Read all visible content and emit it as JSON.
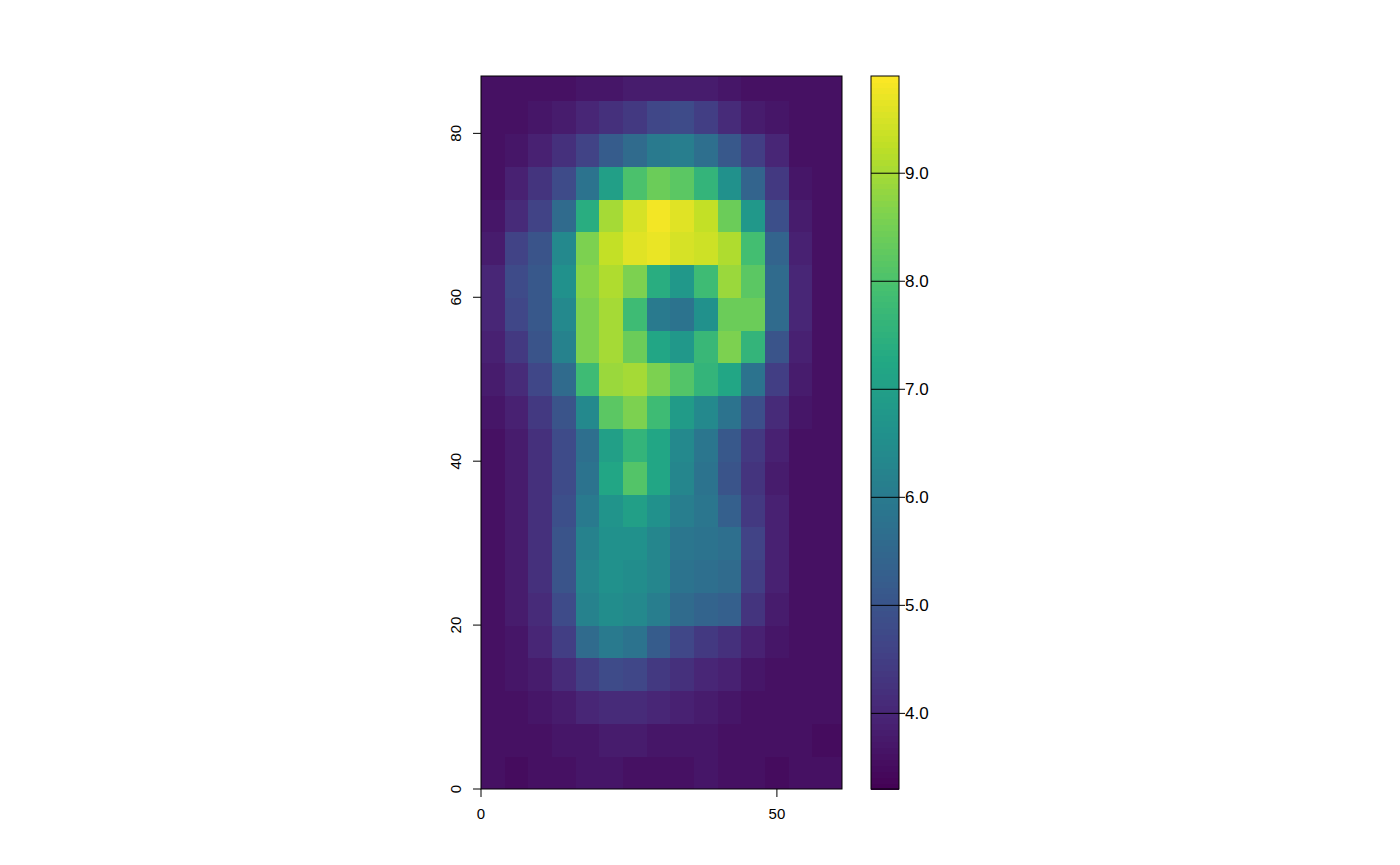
{
  "chart_data": {
    "type": "heatmap",
    "x": [
      0,
      4,
      8,
      12,
      16,
      20,
      24,
      28,
      32,
      36,
      40,
      44,
      48,
      52,
      56,
      61
    ],
    "y": [
      0,
      4,
      8,
      12,
      16,
      20,
      24,
      28,
      32,
      36,
      40,
      44,
      48,
      52,
      56,
      60,
      64,
      68,
      72,
      76,
      80,
      84,
      87
    ],
    "z": [
      [
        3.6,
        3.5,
        3.6,
        3.6,
        3.7,
        3.7,
        3.6,
        3.6,
        3.6,
        3.7,
        3.6,
        3.6,
        3.5,
        3.6,
        3.6
      ],
      [
        3.6,
        3.6,
        3.6,
        3.7,
        3.7,
        3.8,
        3.8,
        3.7,
        3.7,
        3.7,
        3.6,
        3.6,
        3.6,
        3.6,
        3.5
      ],
      [
        3.6,
        3.6,
        3.7,
        3.8,
        4.0,
        4.1,
        4.1,
        4.0,
        3.9,
        3.8,
        3.7,
        3.6,
        3.6,
        3.6,
        3.6
      ],
      [
        3.6,
        3.7,
        3.8,
        4.1,
        4.5,
        4.8,
        4.7,
        4.4,
        4.2,
        4.0,
        3.9,
        3.7,
        3.6,
        3.6,
        3.6
      ],
      [
        3.6,
        3.7,
        4.0,
        4.5,
        5.6,
        6.0,
        5.8,
        5.2,
        4.7,
        4.4,
        4.2,
        3.9,
        3.7,
        3.6,
        3.6
      ],
      [
        3.6,
        3.8,
        4.1,
        4.8,
        6.2,
        6.5,
        6.4,
        6.1,
        5.6,
        5.4,
        5.3,
        4.3,
        3.8,
        3.6,
        3.6
      ],
      [
        3.6,
        3.8,
        4.2,
        5.0,
        6.3,
        6.6,
        6.5,
        6.3,
        5.8,
        5.7,
        5.6,
        4.5,
        3.9,
        3.6,
        3.6
      ],
      [
        3.6,
        3.8,
        4.2,
        5.0,
        6.2,
        6.6,
        6.6,
        6.3,
        5.9,
        5.8,
        5.7,
        4.6,
        3.9,
        3.6,
        3.6
      ],
      [
        3.6,
        3.8,
        4.2,
        4.9,
        6.0,
        6.7,
        7.0,
        6.6,
        6.1,
        5.9,
        5.3,
        4.4,
        3.9,
        3.6,
        3.6
      ],
      [
        3.6,
        3.8,
        4.2,
        4.8,
        5.8,
        7.2,
        8.1,
        7.2,
        6.3,
        5.8,
        5.0,
        4.3,
        3.8,
        3.6,
        3.6
      ],
      [
        3.6,
        3.8,
        4.2,
        4.8,
        5.7,
        7.0,
        7.6,
        7.2,
        6.4,
        5.9,
        5.1,
        4.4,
        3.9,
        3.6,
        3.6
      ],
      [
        3.7,
        3.9,
        4.4,
        5.0,
        6.4,
        8.2,
        8.6,
        7.8,
        6.9,
        6.4,
        5.8,
        4.9,
        4.1,
        3.7,
        3.6
      ],
      [
        3.8,
        4.1,
        4.7,
        5.6,
        7.8,
        8.9,
        9.0,
        8.6,
        8.1,
        7.6,
        7.2,
        5.8,
        4.5,
        3.8,
        3.6
      ],
      [
        3.9,
        4.4,
        5.0,
        6.2,
        8.6,
        9.0,
        8.4,
        7.2,
        6.8,
        7.7,
        8.6,
        7.6,
        5.0,
        3.9,
        3.6
      ],
      [
        4.0,
        4.7,
        5.1,
        6.4,
        8.6,
        9.0,
        7.8,
        6.0,
        5.8,
        6.6,
        8.4,
        8.4,
        5.6,
        4.0,
        3.6
      ],
      [
        4.0,
        4.8,
        5.1,
        6.6,
        8.7,
        9.1,
        8.6,
        7.4,
        6.8,
        7.8,
        8.9,
        8.2,
        5.6,
        4.0,
        3.6
      ],
      [
        3.8,
        4.6,
        5.0,
        6.4,
        8.6,
        9.3,
        9.6,
        9.7,
        9.5,
        9.4,
        9.1,
        7.9,
        5.4,
        3.9,
        3.6
      ],
      [
        3.7,
        4.1,
        4.6,
        5.6,
        7.4,
        9.0,
        9.5,
        9.8,
        9.6,
        9.3,
        8.4,
        6.8,
        4.9,
        3.8,
        3.6
      ],
      [
        3.6,
        3.9,
        4.3,
        4.8,
        5.8,
        7.0,
        8.0,
        8.4,
        8.2,
        7.6,
        6.6,
        5.4,
        4.4,
        3.7,
        3.6
      ],
      [
        3.6,
        3.7,
        3.9,
        4.2,
        4.6,
        5.2,
        5.6,
        6.0,
        6.1,
        5.7,
        5.1,
        4.5,
        4.0,
        3.6,
        3.6
      ],
      [
        3.6,
        3.6,
        3.7,
        3.8,
        4.0,
        4.2,
        4.4,
        4.7,
        4.8,
        4.5,
        4.1,
        3.8,
        3.7,
        3.6,
        3.6
      ],
      [
        3.6,
        3.6,
        3.6,
        3.6,
        3.7,
        3.7,
        3.8,
        3.8,
        3.8,
        3.8,
        3.7,
        3.6,
        3.6,
        3.6,
        3.6
      ]
    ],
    "xlim": [
      0,
      61
    ],
    "ylim": [
      0,
      87
    ],
    "xticks": [
      0,
      50
    ],
    "yticks": [
      0,
      20,
      40,
      60,
      80
    ],
    "colorbar": {
      "range": [
        3.3,
        9.9
      ],
      "ticks": [
        {
          "value": 4,
          "label": "4.0"
        },
        {
          "value": 5,
          "label": "5.0"
        },
        {
          "value": 6,
          "label": "6.0"
        },
        {
          "value": 7,
          "label": "7.0"
        },
        {
          "value": 8,
          "label": "8.0"
        },
        {
          "value": 9,
          "label": "9.0"
        }
      ]
    }
  }
}
